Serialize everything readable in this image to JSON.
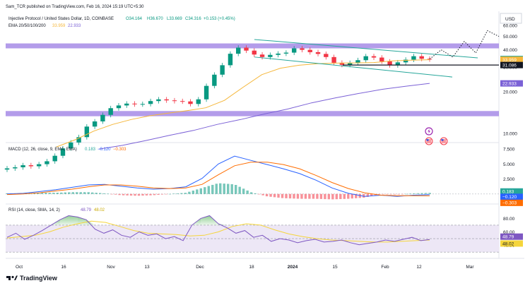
{
  "header": {
    "published": "Sam_TCR published on TradingView.com, Feb 16, 2024 15:19 UTC+5:30",
    "symbol": "Injective Protocol / United States Dollar, 1D, COINBASE",
    "ohlc": {
      "o": "O34.164",
      "h": "H36.670",
      "l": "L33.669",
      "c": "C34.316",
      "chg": "+0.153 (+0.45%)"
    },
    "ema_title": "EMA 20/50/100/200",
    "ema_vals": [
      "33.959",
      "22.933"
    ],
    "currency": "USD"
  },
  "footer": {
    "brand": "TradingView"
  },
  "colors": {
    "up": "#089981",
    "down": "#f23645",
    "ema_fast": "#f5b73b",
    "ema_slow": "#7b61d6",
    "zone": "#9a7be3",
    "macd_line": "#2962ff",
    "signal_line": "#ff6d00",
    "rsi_line": "#7e57c2",
    "rsi_ma": "#f5d53b",
    "rsi_bg": "#ede7f6",
    "green_line": "#26a69a"
  },
  "chart_data": [
    {
      "type": "line",
      "title": "Injective Protocol / United States Dollar, 1D, COINBASE",
      "price_scale": "log",
      "yticks": [
        "60.000",
        "50.000",
        "40.000",
        "30.000",
        "20.000",
        "10.000"
      ],
      "xticks": [
        "Oct",
        "16",
        "Nov",
        "13",
        "Dec",
        "18",
        "2024",
        "15",
        "Feb",
        "12",
        "Mar"
      ],
      "price_labels": [
        {
          "value": "34.316",
          "sub": "14:10:54",
          "color": "#089981"
        },
        {
          "value": "33.959",
          "color": "#f5b73b"
        },
        {
          "value": "31.086",
          "color": "#131722"
        },
        {
          "value": "22.933",
          "color": "#7b61d6"
        }
      ],
      "candles_approx_close": [
        5.6,
        5.7,
        5.9,
        5.8,
        6.0,
        6.3,
        6.9,
        7.8,
        8.6,
        9.4,
        11.2,
        12.2,
        13.6,
        15.2,
        15.9,
        16.4,
        16.2,
        16.3,
        17.1,
        17.6,
        17.3,
        17.1,
        17.0,
        16.3,
        17.6,
        22.0,
        26.5,
        31.0,
        37.5,
        41.5,
        39.5,
        37.0,
        35.5,
        36.8,
        37.6,
        38.2,
        41.0,
        40.0,
        38.5,
        37.4,
        35.5,
        32.3,
        31.2,
        32.2,
        33.7,
        36.0,
        35.2,
        33.0,
        31.0,
        32.5,
        34.0,
        36.0,
        34.5,
        34.2
      ],
      "series": [
        {
          "name": "EMA",
          "values": [
            8.0,
            9.0,
            10.4,
            11.6,
            12.6,
            13.4,
            14.0,
            14.6,
            15.3,
            17.3,
            21.5,
            26.5,
            29.5,
            31.0,
            31.8,
            32.1,
            32.2,
            32.4,
            33.3,
            33.7,
            33.959
          ]
        },
        {
          "name": "EMA",
          "values": [
            7.7,
            8.2,
            8.9,
            9.7,
            10.5,
            11.6,
            12.6,
            13.8,
            15.0,
            16.6,
            18.0,
            19.4,
            20.8,
            21.9,
            22.933
          ]
        }
      ],
      "resistance_zone": [
        41.0,
        44.5
      ],
      "support_zone": [
        13.3,
        14.5
      ],
      "projection": [
        34.316,
        40.0,
        35.5,
        46.0,
        38.0,
        55.0,
        50.0
      ]
    },
    {
      "type": "bar",
      "title": "MACD (12, 26, close, 9, EMA, EMA)",
      "legend_values": [
        "0.183",
        "−0.120",
        "−0.303"
      ],
      "yticks": [
        "7.500",
        "5.000",
        "2.500",
        "0.000"
      ],
      "price_labels": [
        {
          "value": "0.183",
          "color": "#26a69a"
        },
        {
          "value": "−0.120",
          "color": "#2962ff"
        },
        {
          "value": "−0.303",
          "color": "#ff6d00"
        }
      ],
      "series": [
        {
          "name": "MACD",
          "values": [
            0.0,
            0.1,
            0.4,
            0.7,
            1.1,
            1.5,
            1.6,
            1.3,
            1.0,
            0.8,
            0.9,
            1.2,
            2.6,
            5.0,
            6.3,
            5.6,
            4.9,
            4.2,
            3.4,
            2.3,
            1.0,
            0.1,
            -0.4,
            -0.2,
            -0.4,
            -0.2,
            -0.12
          ]
        },
        {
          "name": "Signal",
          "values": [
            -0.1,
            0.0,
            0.2,
            0.5,
            0.8,
            1.2,
            1.5,
            1.5,
            1.3,
            1.0,
            0.9,
            1.0,
            1.6,
            3.2,
            4.7,
            5.3,
            5.3,
            4.9,
            4.2,
            3.1,
            1.9,
            0.9,
            0.2,
            -0.2,
            -0.3,
            -0.3,
            -0.303
          ]
        }
      ]
    },
    {
      "type": "line",
      "title": "RSI (14, close, SMA, 14, 2)",
      "legend_values": [
        "48.79",
        "48.02"
      ],
      "yticks": [
        "80.00",
        "60.00",
        "40.00"
      ],
      "price_labels": [
        {
          "value": "48.79",
          "color": "#7e57c2"
        },
        {
          "value": "48.02",
          "color": "#f5d53b"
        }
      ],
      "bands": [
        70,
        50,
        30
      ],
      "series": [
        {
          "name": "RSI",
          "values": [
            52,
            58,
            49,
            55,
            62,
            70,
            78,
            84,
            82,
            78,
            64,
            58,
            63,
            55,
            52,
            60,
            55,
            57,
            50,
            53,
            47,
            70,
            80,
            84,
            72,
            66,
            58,
            62,
            52,
            55,
            46,
            50,
            48,
            44,
            47,
            49,
            45,
            46,
            48,
            44,
            41,
            43,
            45,
            48,
            46,
            49,
            52,
            47,
            48.79
          ]
        },
        {
          "name": "RSI MA",
          "values": [
            51,
            53,
            55,
            60,
            67,
            72,
            76,
            74,
            68,
            62,
            58,
            57,
            56,
            54,
            55,
            60,
            68,
            72,
            70,
            63,
            57,
            53,
            50,
            48,
            47,
            46,
            45,
            45,
            46,
            47,
            48.02
          ]
        }
      ]
    }
  ]
}
